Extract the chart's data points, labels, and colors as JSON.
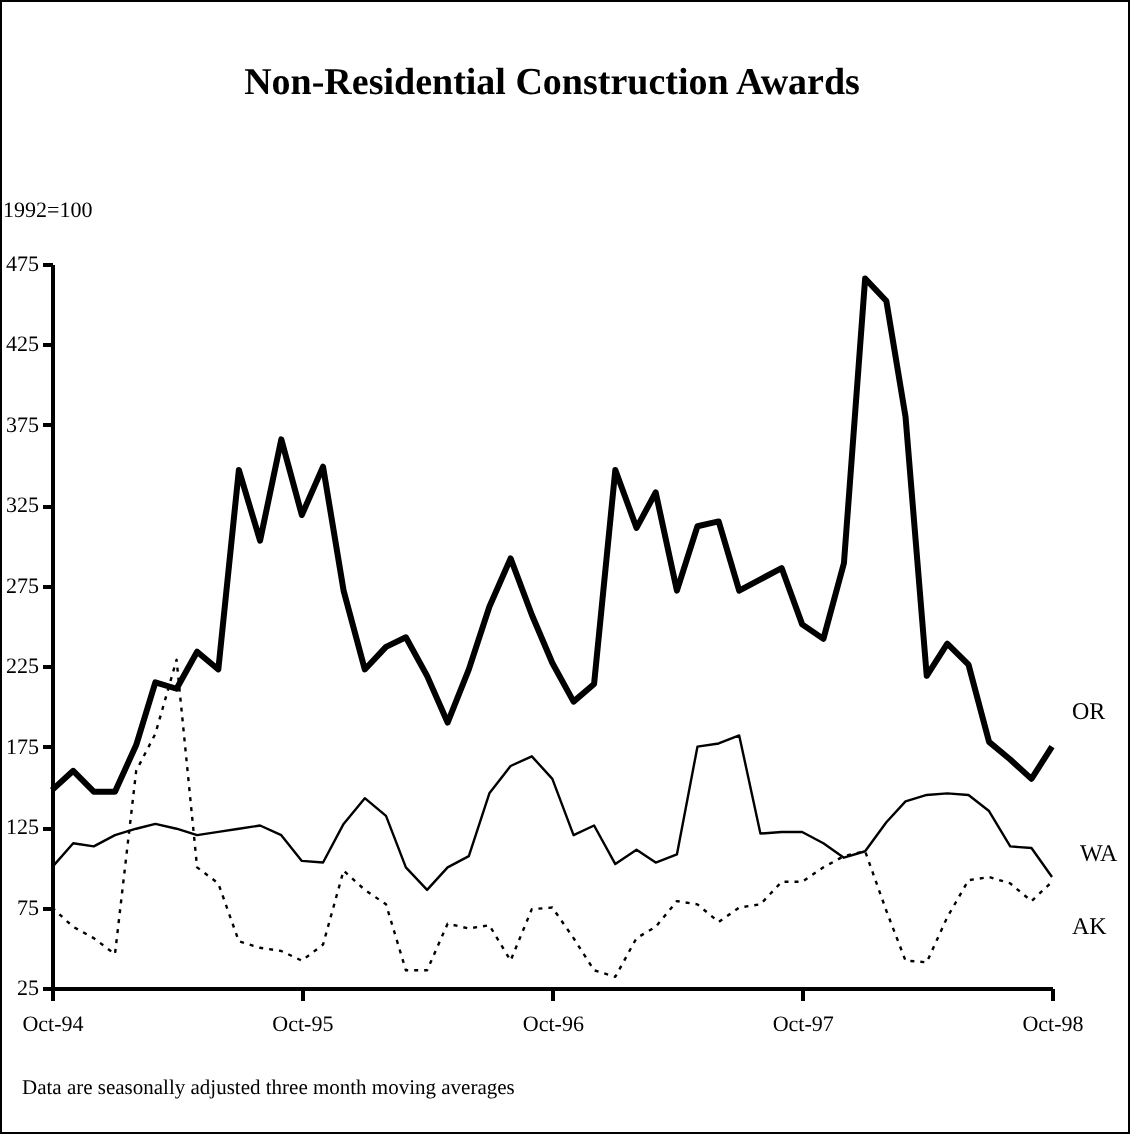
{
  "chart_data": {
    "type": "line",
    "title": "Non-Residential Construction Awards",
    "ylabel": "1992=100",
    "annotations": [
      "Data are seasonally adjusted three month moving averages"
    ],
    "x": [
      "1994-10",
      "1994-11",
      "1994-12",
      "1995-01",
      "1995-02",
      "1995-03",
      "1995-04",
      "1995-05",
      "1995-06",
      "1995-07",
      "1995-08",
      "1995-09",
      "1995-10",
      "1995-11",
      "1995-12",
      "1996-01",
      "1996-02",
      "1996-03",
      "1996-04",
      "1996-05",
      "1996-06",
      "1996-07",
      "1996-08",
      "1996-09",
      "1996-10",
      "1996-11",
      "1996-12",
      "1997-01",
      "1997-02",
      "1997-03",
      "1997-04",
      "1997-05",
      "1997-06",
      "1997-07",
      "1997-08",
      "1997-09",
      "1997-10",
      "1997-11",
      "1997-12",
      "1998-01",
      "1998-02",
      "1998-03",
      "1998-04",
      "1998-05",
      "1998-06",
      "1998-07",
      "1998-08",
      "1998-09",
      "1998-10"
    ],
    "series": [
      {
        "name": "OR",
        "color": "#000000",
        "line_style": "solid",
        "values": [
          148,
          160,
          147,
          147,
          176,
          215,
          211,
          234,
          223,
          347,
          303,
          366,
          319,
          349,
          272,
          223,
          237,
          243,
          219,
          190,
          223,
          262,
          292,
          257,
          227,
          203,
          214,
          347,
          311,
          333,
          272,
          312,
          315,
          272,
          279,
          286,
          251,
          242,
          289,
          466,
          452,
          380,
          219,
          239,
          226,
          178,
          167,
          155,
          175
        ]
      },
      {
        "name": "WA",
        "color": "#000000",
        "line_style": "solid",
        "values": [
          100,
          115,
          113,
          120,
          124,
          127,
          124,
          120,
          122,
          124,
          126,
          120,
          104,
          103,
          127,
          143,
          132,
          100,
          86,
          100,
          107,
          146,
          163,
          169,
          155,
          120,
          126,
          102,
          111,
          103,
          108,
          175,
          177,
          182,
          121,
          122,
          122,
          115,
          106,
          110,
          128,
          141,
          145,
          146,
          145,
          135,
          113,
          112,
          94
        ]
      },
      {
        "name": "AK",
        "color": "#000000",
        "line_style": "dotted",
        "values": [
          75,
          63,
          56,
          46,
          160,
          183,
          229,
          100,
          90,
          54,
          50,
          48,
          42,
          52,
          98,
          86,
          77,
          36,
          36,
          65,
          62,
          64,
          42,
          74,
          75,
          56,
          36,
          32,
          56,
          63,
          79,
          77,
          66,
          75,
          77,
          91,
          91,
          100,
          107,
          110,
          73,
          42,
          41,
          69,
          92,
          94,
          90,
          79,
          91
        ]
      }
    ],
    "xlim": [
      "1994-10",
      "1998-10"
    ],
    "xticks": [
      {
        "value": "1994-10",
        "label": "Oct-94"
      },
      {
        "value": "1995-10",
        "label": "Oct-95"
      },
      {
        "value": "1996-10",
        "label": "Oct-96"
      },
      {
        "value": "1997-10",
        "label": "Oct-97"
      },
      {
        "value": "1998-10",
        "label": "Oct-98"
      }
    ],
    "ylim": [
      25,
      475
    ],
    "yticks": [
      25,
      75,
      125,
      175,
      225,
      275,
      325,
      375,
      425,
      475
    ],
    "grid": false
  }
}
